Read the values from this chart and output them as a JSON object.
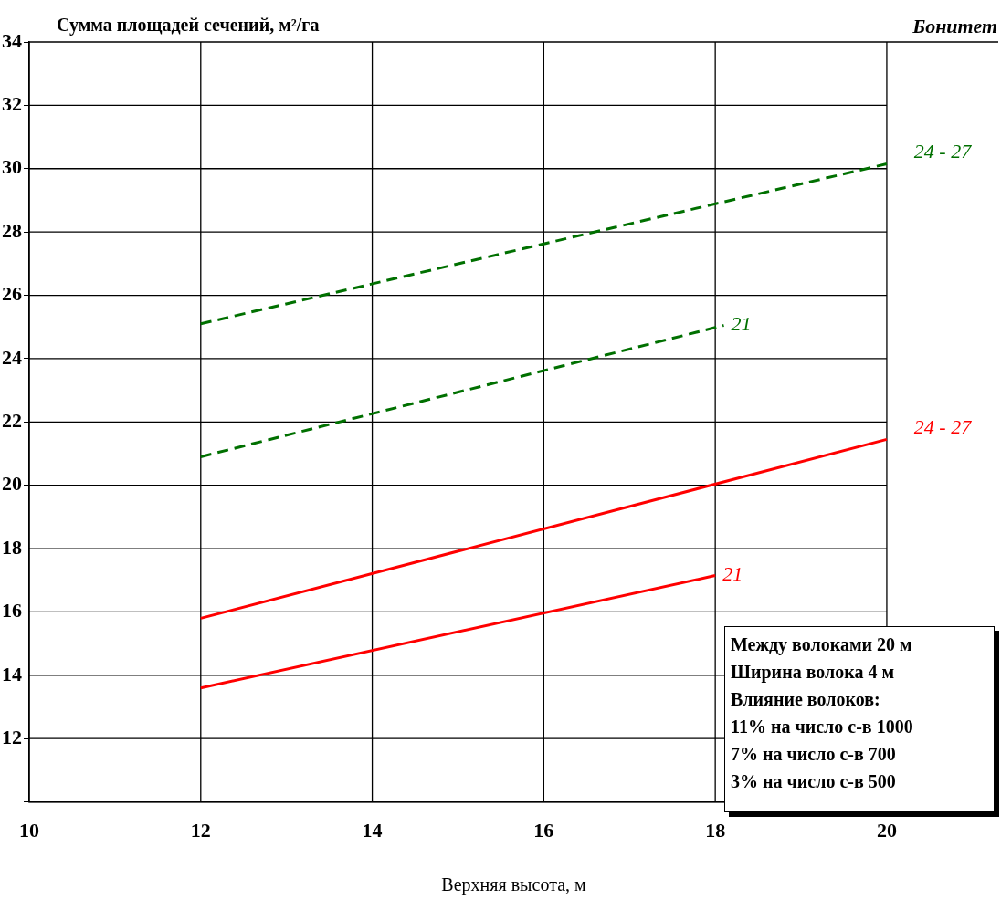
{
  "chart_data": {
    "type": "line",
    "ylabel": "Сумма площадей сечений, м²/га",
    "xlabel": "Верхняя высота, м",
    "legend_title": "Бонитет",
    "series": [
      {
        "name": "24 - 27",
        "color": "#007000",
        "line_style": "dashed",
        "x": [
          12,
          20
        ],
        "values": [
          25.1,
          30.15
        ]
      },
      {
        "name": "21",
        "color": "#007000",
        "line_style": "dashed",
        "x": [
          12,
          18.1
        ],
        "values": [
          20.9,
          25.05
        ]
      },
      {
        "name": "24 - 27",
        "color": "#ff0000",
        "line_style": "solid",
        "x": [
          12,
          20
        ],
        "values": [
          15.8,
          21.45
        ]
      },
      {
        "name": "21",
        "color": "#ff0000",
        "line_style": "solid",
        "x": [
          12,
          18
        ],
        "values": [
          13.6,
          17.15
        ]
      }
    ],
    "xlim": [
      10,
      21.3
    ],
    "xticks": [
      10,
      12,
      14,
      16,
      18,
      20
    ],
    "ylim": [
      10,
      34
    ],
    "yticks": [
      {
        "value": 10,
        "label": null
      },
      12,
      14,
      16,
      18,
      20,
      22,
      24,
      26,
      28,
      30,
      32,
      34
    ],
    "grid": true,
    "legend": false,
    "marker": "none",
    "annotations": [
      "Между волоками 20 м\nШирина волока 4 м\nВлияние волоков:\n11% на число с-в 1000\n7% на число с-в 700\n3% на число с-в 500"
    ]
  }
}
